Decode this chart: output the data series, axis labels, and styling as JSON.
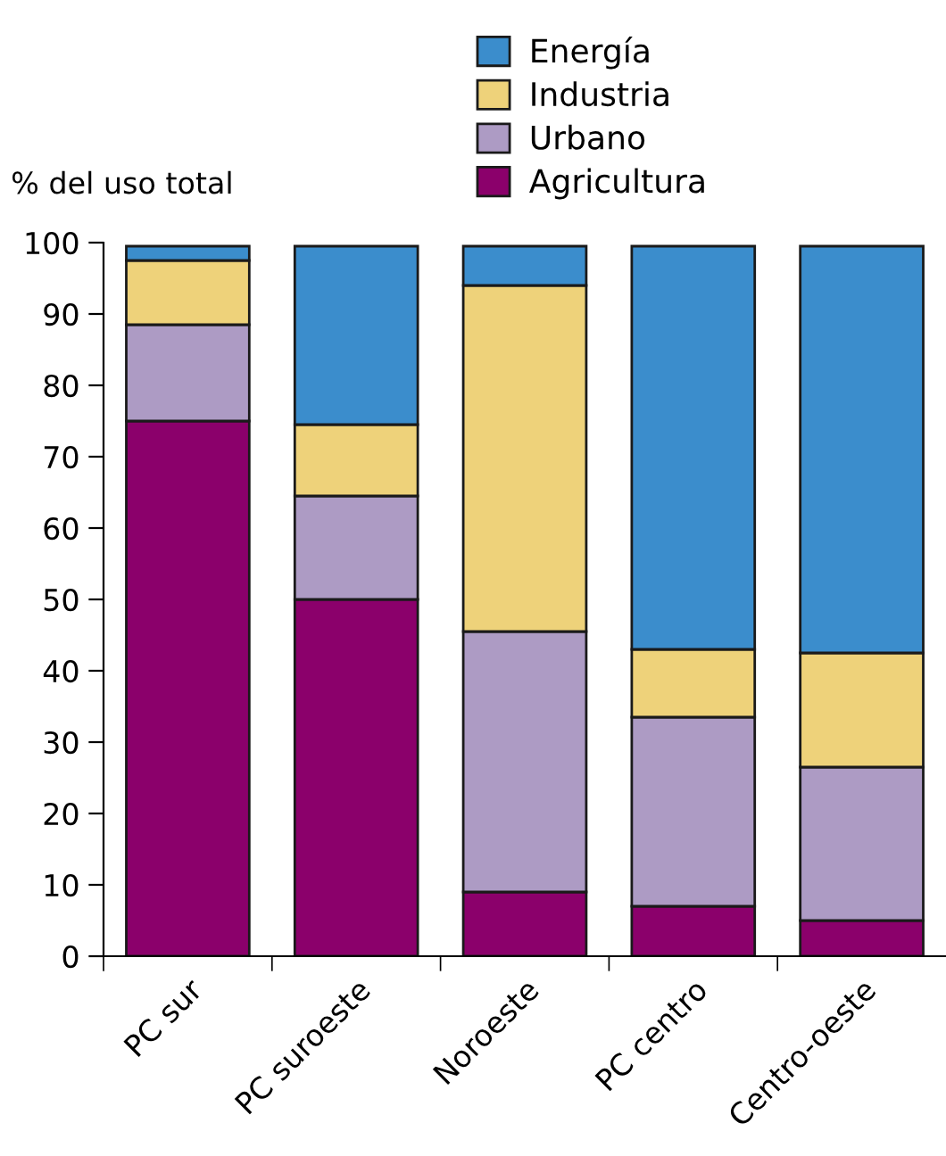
{
  "chart_data": {
    "type": "bar",
    "stacked": true,
    "ylabel": "% del uso total",
    "categories": [
      "PC sur",
      "PC suroeste",
      "Noroeste",
      "PC centro",
      "Centro-oeste"
    ],
    "series": [
      {
        "name": "Agricultura",
        "color": "#8b006b",
        "values": [
          75,
          50,
          9,
          7,
          5
        ]
      },
      {
        "name": "Urbano",
        "color": "#ad9bc4",
        "values": [
          13.5,
          14.5,
          36.5,
          26.5,
          21.5
        ]
      },
      {
        "name": "Industria",
        "color": "#eed27a",
        "values": [
          9,
          10,
          48.5,
          9.5,
          16
        ]
      },
      {
        "name": "Energía",
        "color": "#3b8dcc",
        "values": [
          2,
          25,
          5.5,
          56.5,
          57
        ]
      }
    ],
    "ylim": [
      0,
      100
    ],
    "yticks": [
      0,
      10,
      20,
      30,
      40,
      50,
      60,
      70,
      80,
      90,
      100
    ],
    "grid": false,
    "legend": "top"
  }
}
